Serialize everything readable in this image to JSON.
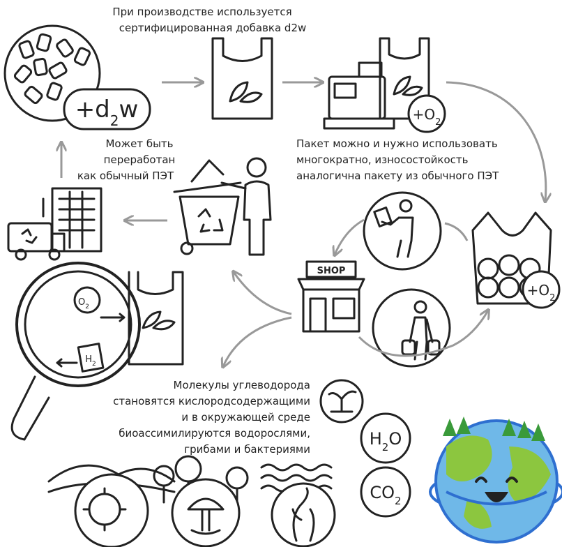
{
  "captions": {
    "additive": [
      "При производстве используется",
      "сертифицированная добавка d2w"
    ],
    "reuse": [
      "Пакет можно и нужно использовать",
      "многократно, износостойкость",
      "аналогична пакету из обычного ПЭТ"
    ],
    "recycle": [
      "Может быть",
      "переработан",
      "как обычный ПЭТ"
    ],
    "degrade": [
      "Молекулы углеводорода",
      "становятся кислородсодержащими",
      "и в окружающей среде",
      "биоассимилируются водорослями,",
      "грибами и бактериями"
    ]
  },
  "labels": {
    "d2w": [
      "+d",
      "2",
      "w"
    ],
    "oxygen_1": [
      "+O",
      "2"
    ],
    "oxygen_2": [
      "+O",
      "2"
    ],
    "shop": "SHOP",
    "o2": [
      "O",
      "2"
    ],
    "h2": [
      "H",
      "2"
    ],
    "water": [
      "H",
      "2",
      "O"
    ],
    "co2": [
      "CO",
      "2"
    ]
  }
}
